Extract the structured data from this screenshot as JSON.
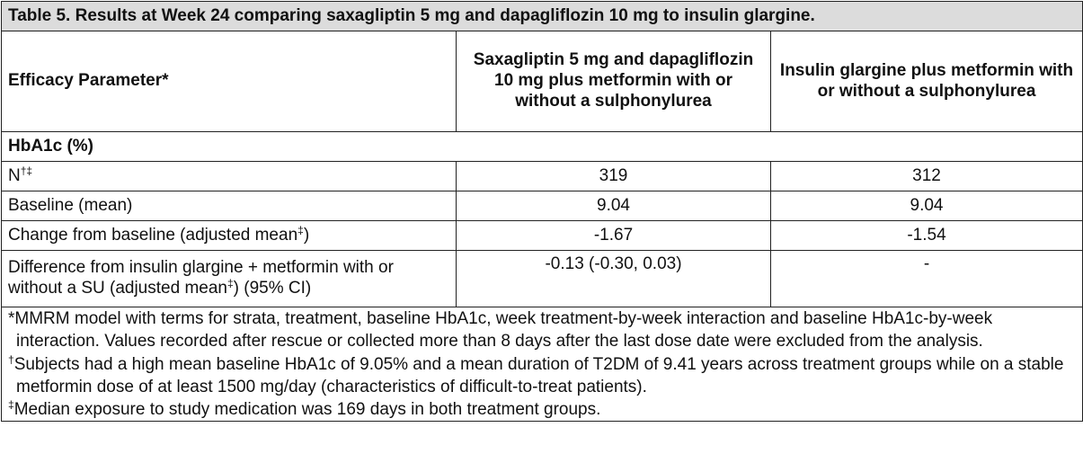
{
  "caption": "Table 5. Results at Week 24 comparing saxagliptin 5 mg and dapagliflozin 10 mg to insulin glargine.",
  "header": {
    "param": "Efficacy Parameter*",
    "col1": "Saxagliptin 5 mg and dapagliflozin 10 mg plus metformin with or without a sulphonylurea",
    "col2": "Insulin glargine plus metformin with or without a sulphonylurea"
  },
  "section": "HbA1c (%)",
  "rows": [
    {
      "label": "N",
      "label_sup": "†‡",
      "col1": "319",
      "col2": "312"
    },
    {
      "label": "Baseline (mean)",
      "col1": "9.04",
      "col2": "9.04"
    },
    {
      "label": "Change from baseline (adjusted mean",
      "label_sup": "‡",
      "label_tail": ")",
      "col1": "-1.67",
      "col2": "-1.54"
    },
    {
      "label": "Difference from insulin glargine + metformin with or without a SU (adjusted mean",
      "label_sup": "‡",
      "label_tail": ") (95% CI)",
      "col1": "-0.13 (-0.30, 0.03)",
      "col2": "-"
    }
  ],
  "footnotes": [
    {
      "mark": "*",
      "text": "MMRM model with terms for strata, treatment, baseline HbA1c, week treatment-by-week interaction and baseline HbA1c-by-week interaction. Values recorded after rescue or collected more than 8 days after the last dose date were excluded from the analysis."
    },
    {
      "mark": "†",
      "text": "Subjects had a high mean baseline HbA1c of 9.05% and a mean duration of T2DM of 9.41 years across treatment groups while on a stable metformin dose of at least 1500 mg/day (characteristics of difficult-to-treat patients)."
    },
    {
      "mark": "‡",
      "text": "Median exposure to study medication was 169 days in both treatment groups."
    }
  ]
}
